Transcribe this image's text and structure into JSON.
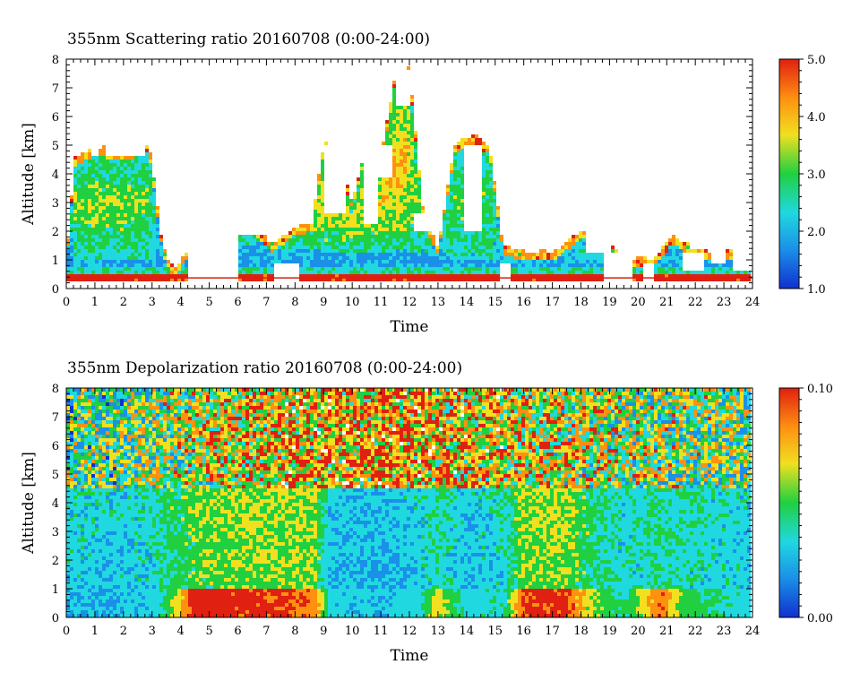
{
  "chart_data": [
    {
      "type": "heatmap",
      "title": "355nm Scattering ratio  20160708 (0:00-24:00)",
      "xlabel": "Time",
      "ylabel": "Altitude [km]",
      "xlim": [
        0,
        24
      ],
      "ylim": [
        0,
        8
      ],
      "x_ticks": [
        "0",
        "1",
        "2",
        "3",
        "4",
        "5",
        "6",
        "7",
        "8",
        "9",
        "10",
        "11",
        "12",
        "13",
        "14",
        "15",
        "16",
        "17",
        "18",
        "19",
        "20",
        "21",
        "22",
        "23",
        "24"
      ],
      "y_ticks": [
        "0",
        "1",
        "2",
        "3",
        "4",
        "5",
        "6",
        "7",
        "8"
      ],
      "colorbar": {
        "range": [
          1.0,
          5.0
        ],
        "tick_labels": [
          "1.0",
          "2.0",
          "3.0",
          "4.0",
          "5.0"
        ]
      },
      "colors": [
        "#1030d0",
        "#1a90e8",
        "#20d8e0",
        "#20d040",
        "#f0e020",
        "#ff9010",
        "#e02010"
      ],
      "blanks": [
        {
          "t0": 0.9,
          "t1": 1.1,
          "a0": 4.6,
          "a1": 5.1
        },
        {
          "t0": 1.4,
          "t1": 2.6,
          "a0": 4.6,
          "a1": 5.0
        },
        {
          "t0": 2.2,
          "t1": 2.8,
          "a0": 4.6,
          "a1": 5.8
        },
        {
          "t0": 3.1,
          "t1": 3.4,
          "a0": 4.2,
          "a1": 5.5
        },
        {
          "t0": 4.3,
          "t1": 6.0,
          "a0": 0.3,
          "a1": 2.3
        },
        {
          "t0": 5.0,
          "t1": 7.5,
          "a0": 1.9,
          "a1": 3.0
        },
        {
          "t0": 7.3,
          "t1": 8.2,
          "a0": 0.3,
          "a1": 0.9
        },
        {
          "t0": 9.0,
          "t1": 9.8,
          "a0": 2.6,
          "a1": 5.0
        },
        {
          "t0": 10.4,
          "t1": 10.9,
          "a0": 2.2,
          "a1": 5.2
        },
        {
          "t0": 10.7,
          "t1": 11.4,
          "a0": 3.9,
          "a1": 5.0
        },
        {
          "t0": 11.5,
          "t1": 12.0,
          "a0": 6.4,
          "a1": 7.6
        },
        {
          "t0": 12.2,
          "t1": 12.8,
          "a0": 2.0,
          "a1": 2.6
        },
        {
          "t0": 13.9,
          "t1": 14.5,
          "a0": 2.0,
          "a1": 5.0
        },
        {
          "t0": 15.2,
          "t1": 15.6,
          "a0": 0.3,
          "a1": 0.9
        },
        {
          "t0": 18.2,
          "t1": 19.0,
          "a0": 1.3,
          "a1": 2.0
        },
        {
          "t0": 18.8,
          "t1": 19.8,
          "a0": 0.3,
          "a1": 1.2
        },
        {
          "t0": 20.2,
          "t1": 20.5,
          "a0": 0.3,
          "a1": 0.9
        },
        {
          "t0": 21.6,
          "t1": 22.3,
          "a0": 0.6,
          "a1": 1.2
        },
        {
          "t0": 22.5,
          "t1": 23.0,
          "a0": 0.9,
          "a1": 1.4
        },
        {
          "t0": 23.3,
          "t1": 24.0,
          "a0": 0.6,
          "a1": 1.4
        }
      ],
      "profiles": [
        {
          "t": 0.0,
          "pbl": 1.0,
          "top": 1.0,
          "cloud": 0.0
        },
        {
          "t": 0.3,
          "pbl": 1.0,
          "top": 4.5,
          "cloud": 1.6
        },
        {
          "t": 1.0,
          "pbl": 1.0,
          "top": 4.9,
          "cloud": 1.8
        },
        {
          "t": 2.0,
          "pbl": 1.0,
          "top": 4.7,
          "cloud": 1.7
        },
        {
          "t": 2.9,
          "pbl": 1.0,
          "top": 5.0,
          "cloud": 1.6
        },
        {
          "t": 3.4,
          "pbl": 0.9,
          "top": 1.3,
          "cloud": 0.2
        },
        {
          "t": 3.8,
          "pbl": 0.6,
          "top": 0.6,
          "cloud": 0.0
        },
        {
          "t": 4.5,
          "pbl": 0.9,
          "top": 1.8,
          "cloud": 0.8
        },
        {
          "t": 5.5,
          "pbl": 1.3,
          "top": 2.0,
          "cloud": 0.9
        },
        {
          "t": 6.5,
          "pbl": 1.5,
          "top": 2.2,
          "cloud": 1.2
        },
        {
          "t": 7.2,
          "pbl": 0.8,
          "top": 1.5,
          "cloud": 0.4
        },
        {
          "t": 8.0,
          "pbl": 1.4,
          "top": 2.1,
          "cloud": 1.3
        },
        {
          "t": 8.6,
          "pbl": 1.3,
          "top": 2.2,
          "cloud": 1.5
        },
        {
          "t": 9.0,
          "pbl": 1.4,
          "top": 5.0,
          "cloud": 2.3
        },
        {
          "t": 9.5,
          "pbl": 1.3,
          "top": 4.6,
          "cloud": 2.2
        },
        {
          "t": 10.0,
          "pbl": 1.2,
          "top": 3.0,
          "cloud": 2.0
        },
        {
          "t": 10.5,
          "pbl": 1.3,
          "top": 5.0,
          "cloud": 2.1
        },
        {
          "t": 11.0,
          "pbl": 1.2,
          "top": 4.6,
          "cloud": 2.3
        },
        {
          "t": 11.5,
          "pbl": 1.4,
          "top": 7.3,
          "cloud": 2.5
        },
        {
          "t": 12.0,
          "pbl": 1.3,
          "top": 7.6,
          "cloud": 2.2
        },
        {
          "t": 12.5,
          "pbl": 1.2,
          "top": 2.5,
          "cloud": 1.4
        },
        {
          "t": 13.0,
          "pbl": 0.9,
          "top": 1.4,
          "cloud": 0.7
        },
        {
          "t": 13.6,
          "pbl": 1.0,
          "top": 5.0,
          "cloud": 1.6
        },
        {
          "t": 14.2,
          "pbl": 1.0,
          "top": 5.3,
          "cloud": 1.6
        },
        {
          "t": 14.8,
          "pbl": 1.0,
          "top": 4.9,
          "cloud": 1.5
        },
        {
          "t": 15.3,
          "pbl": 0.9,
          "top": 1.4,
          "cloud": 0.5
        },
        {
          "t": 16.0,
          "pbl": 0.8,
          "top": 1.2,
          "cloud": 0.4
        },
        {
          "t": 17.0,
          "pbl": 0.8,
          "top": 1.2,
          "cloud": 0.4
        },
        {
          "t": 18.0,
          "pbl": 0.9,
          "top": 2.0,
          "cloud": 0.8
        },
        {
          "t": 18.8,
          "pbl": 0.8,
          "top": 1.8,
          "cloud": 0.7
        },
        {
          "t": 19.5,
          "pbl": 0.7,
          "top": 1.0,
          "cloud": 0.2
        },
        {
          "t": 20.5,
          "pbl": 0.7,
          "top": 1.0,
          "cloud": 0.3
        },
        {
          "t": 21.2,
          "pbl": 0.8,
          "top": 1.8,
          "cloud": 0.5
        },
        {
          "t": 22.0,
          "pbl": 0.8,
          "top": 1.3,
          "cloud": 0.4
        },
        {
          "t": 23.0,
          "pbl": 0.7,
          "top": 1.3,
          "cloud": 0.3
        },
        {
          "t": 24.0,
          "pbl": 0.7,
          "top": 1.2,
          "cloud": 0.2
        }
      ]
    },
    {
      "type": "heatmap",
      "title": "355nm Depolarization ratio  20160708 (0:00-24:00)",
      "xlabel": "Time",
      "ylabel": "Altitude [km]",
      "xlim": [
        0,
        24
      ],
      "ylim": [
        0,
        8
      ],
      "x_ticks": [
        "0",
        "1",
        "2",
        "3",
        "4",
        "5",
        "6",
        "7",
        "8",
        "9",
        "10",
        "11",
        "12",
        "13",
        "14",
        "15",
        "16",
        "17",
        "18",
        "19",
        "20",
        "21",
        "22",
        "23",
        "24"
      ],
      "y_ticks": [
        "0",
        "1",
        "2",
        "3",
        "4",
        "5",
        "6",
        "7",
        "8"
      ],
      "colorbar": {
        "range": [
          0.0,
          0.1
        ],
        "tick_labels": [
          "0.00",
          "0.10"
        ]
      },
      "colors": [
        "#1030d0",
        "#1a90e8",
        "#20d8e0",
        "#20d040",
        "#f0e020",
        "#ff9010",
        "#e02010"
      ],
      "profiles": [
        {
          "t": 0.0,
          "low": 0.3,
          "mid": 0.35,
          "noise": 0.45
        },
        {
          "t": 1.5,
          "low": 0.3,
          "mid": 0.32,
          "noise": 0.45
        },
        {
          "t": 3.0,
          "low": 0.32,
          "mid": 0.35,
          "noise": 0.5
        },
        {
          "t": 3.6,
          "low": 0.5,
          "mid": 0.45,
          "noise": 0.55
        },
        {
          "t": 4.5,
          "low": 0.95,
          "mid": 0.5,
          "noise": 0.6
        },
        {
          "t": 6.0,
          "low": 0.9,
          "mid": 0.55,
          "noise": 0.65
        },
        {
          "t": 7.5,
          "low": 0.9,
          "mid": 0.55,
          "noise": 0.7
        },
        {
          "t": 8.7,
          "low": 0.8,
          "mid": 0.55,
          "noise": 0.72
        },
        {
          "t": 9.2,
          "low": 0.35,
          "mid": 0.3,
          "noise": 0.72
        },
        {
          "t": 11.0,
          "low": 0.3,
          "mid": 0.28,
          "noise": 0.75
        },
        {
          "t": 12.3,
          "low": 0.35,
          "mid": 0.32,
          "noise": 0.75
        },
        {
          "t": 13.0,
          "low": 0.65,
          "mid": 0.4,
          "noise": 0.72
        },
        {
          "t": 14.0,
          "low": 0.35,
          "mid": 0.3,
          "noise": 0.7
        },
        {
          "t": 15.3,
          "low": 0.4,
          "mid": 0.35,
          "noise": 0.68
        },
        {
          "t": 16.0,
          "low": 0.9,
          "mid": 0.55,
          "noise": 0.65
        },
        {
          "t": 17.5,
          "low": 0.9,
          "mid": 0.55,
          "noise": 0.62
        },
        {
          "t": 18.3,
          "low": 0.6,
          "mid": 0.45,
          "noise": 0.6
        },
        {
          "t": 19.5,
          "low": 0.4,
          "mid": 0.35,
          "noise": 0.55
        },
        {
          "t": 20.8,
          "low": 0.85,
          "mid": 0.4,
          "noise": 0.55
        },
        {
          "t": 21.6,
          "low": 0.5,
          "mid": 0.38,
          "noise": 0.52
        },
        {
          "t": 24.0,
          "low": 0.35,
          "mid": 0.32,
          "noise": 0.5
        }
      ]
    }
  ]
}
